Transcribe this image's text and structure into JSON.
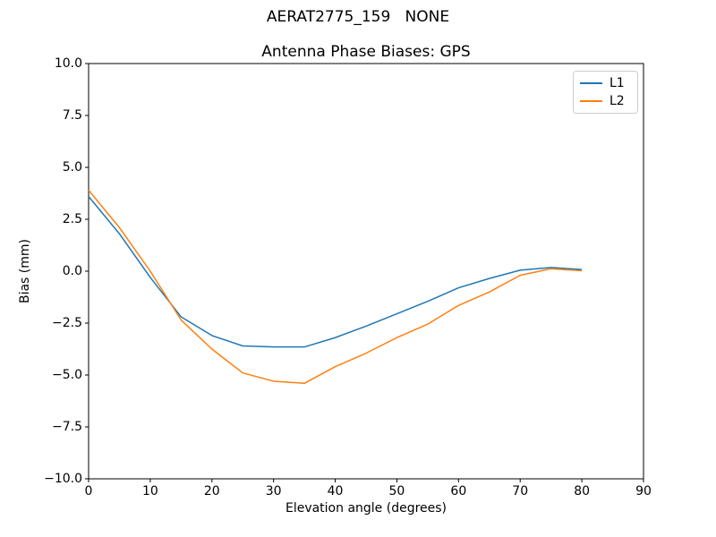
{
  "figure": {
    "suptitle": "AERAT2775_159   NONE",
    "background": "#ffffff",
    "text_color": "#000000",
    "spine_color": "#000000"
  },
  "chart_data": {
    "type": "line",
    "title": "Antenna Phase Biases: GPS",
    "xlabel": "Elevation angle (degrees)",
    "ylabel": "Bias (mm)",
    "xlim": [
      0,
      90
    ],
    "ylim": [
      -10,
      10
    ],
    "grid": false,
    "xticks": [
      0,
      10,
      20,
      30,
      40,
      50,
      60,
      70,
      80,
      90
    ],
    "xtick_labels": [
      "0",
      "10",
      "20",
      "30",
      "40",
      "50",
      "60",
      "70",
      "80",
      "90"
    ],
    "yticks": [
      -10,
      -7.5,
      -5,
      -2.5,
      0,
      2.5,
      5,
      7.5,
      10
    ],
    "ytick_labels": [
      "−10.0",
      "−7.5",
      "−5.0",
      "−2.5",
      "0.0",
      "2.5",
      "5.0",
      "7.5",
      "10.0"
    ],
    "legend_position": "upper right",
    "x": [
      0,
      5,
      10,
      15,
      20,
      25,
      30,
      35,
      40,
      45,
      50,
      55,
      60,
      65,
      70,
      75,
      80
    ],
    "series": [
      {
        "name": "L1",
        "color": "#1f77b4",
        "values": [
          3.6,
          1.8,
          -0.3,
          -2.2,
          -3.1,
          -3.6,
          -3.65,
          -3.65,
          -3.2,
          -2.65,
          -2.05,
          -1.45,
          -0.8,
          -0.35,
          0.05,
          0.18,
          0.08
        ]
      },
      {
        "name": "L2",
        "color": "#ff7f0e",
        "values": [
          3.9,
          2.1,
          0.0,
          -2.35,
          -3.75,
          -4.9,
          -5.3,
          -5.4,
          -4.6,
          -3.95,
          -3.2,
          -2.55,
          -1.65,
          -1.0,
          -0.2,
          0.12,
          0.02
        ]
      }
    ]
  }
}
